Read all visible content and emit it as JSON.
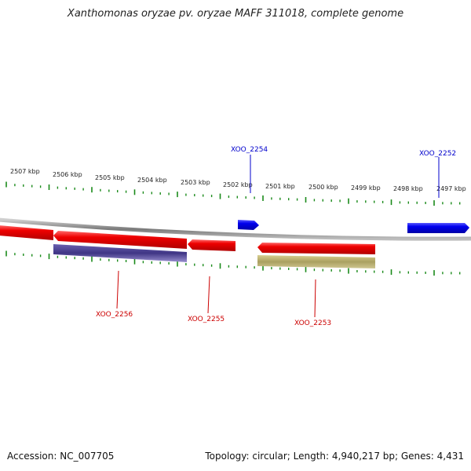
{
  "title": "Xanthomonas oryzae pv. oryzae MAFF 311018, complete genome",
  "footer": {
    "accession": "Accession: NC_007705",
    "summary": "Topology: circular; Length: 4,940,217 bp; Genes: 4,431"
  },
  "ruler": {
    "labels": [
      "2507 kbp",
      "2506 kbp",
      "2505 kbp",
      "2504 kbp",
      "2503 kbp",
      "2502 kbp",
      "2501 kbp",
      "2500 kbp",
      "2499 kbp",
      "2498 kbp",
      "2497 kbp"
    ]
  },
  "genes": [
    {
      "id": "XOO_2254",
      "strand": "+",
      "color": "#0000ee"
    },
    {
      "id": "XOO_2252",
      "strand": "+",
      "color": "#0000ee"
    },
    {
      "id": "XOO_2256",
      "strand": "-",
      "color": "#dd0000"
    },
    {
      "id": "XOO_2255",
      "strand": "-",
      "color": "#dd0000"
    },
    {
      "id": "XOO_2253",
      "strand": "-",
      "color": "#dd0000"
    }
  ],
  "colors": {
    "forward_gene": "#0000ee",
    "reverse_gene": "#ee0000",
    "backbone": "#888888",
    "ticks": "#1a8a1a",
    "reverse_feature_blue": "#4a3f8f",
    "reverse_feature_olive": "#b8ae6a"
  }
}
